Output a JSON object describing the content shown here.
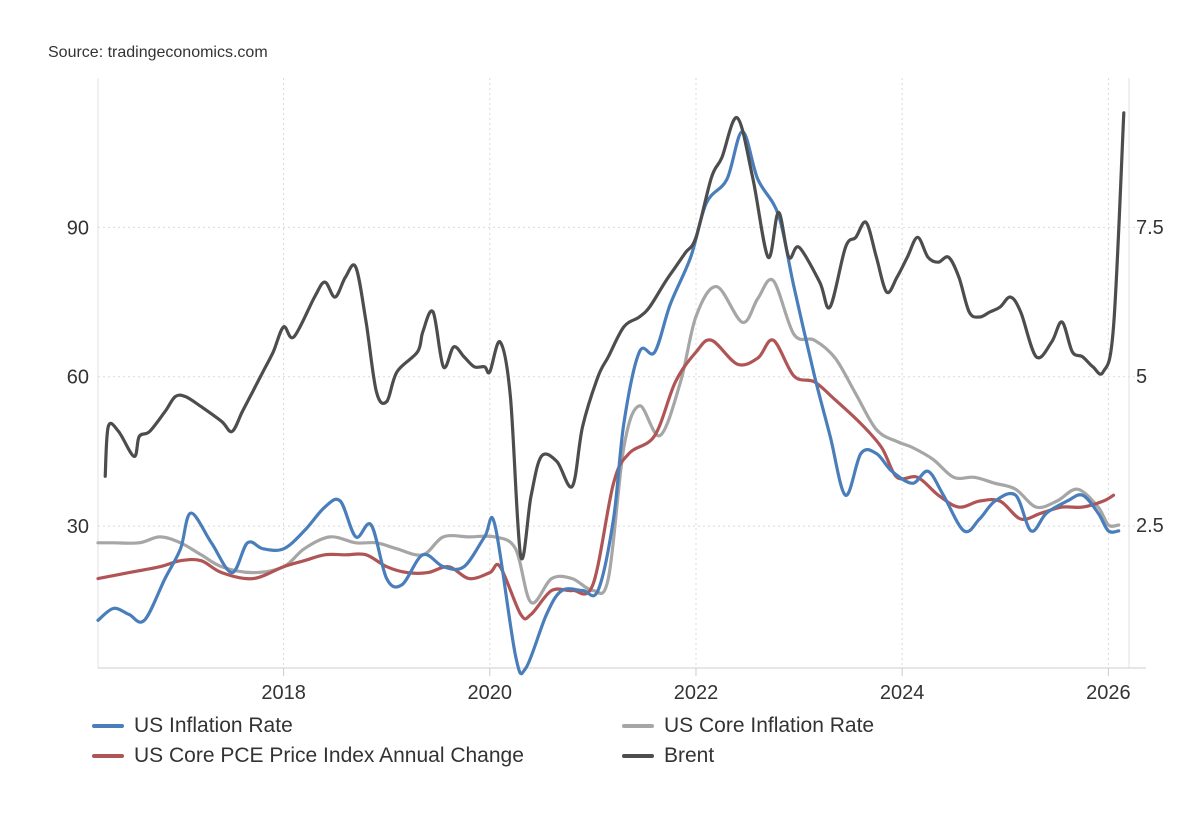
{
  "source": "Source: tradingeconomics.com",
  "chart_data": {
    "type": "line",
    "xlim": [
      2016.2,
      2026.2
    ],
    "x_ticks": [
      2018,
      2020,
      2022,
      2024,
      2026
    ],
    "x_tick_labels": [
      "2018",
      "2020",
      "2022",
      "2024",
      "2026"
    ],
    "y_left": {
      "ticks": [
        30,
        60,
        90
      ],
      "tick_labels": [
        "30",
        "60",
        "90"
      ],
      "range": [
        1.5,
        120
      ],
      "applies_to": "Brent"
    },
    "y_right": {
      "ticks": [
        2.5,
        5,
        7.5
      ],
      "tick_labels": [
        "2.5",
        "5",
        "7.5"
      ],
      "range": [
        0.1,
        10
      ],
      "applies_to": [
        "US Inflation Rate",
        "US Core Inflation Rate",
        "US Core PCE Price Index Annual Change"
      ]
    },
    "grid": true,
    "legend_position": "bottom",
    "series": [
      {
        "name": "US Inflation Rate",
        "axis": "right",
        "color": "#4a7ebb",
        "x": [
          2016.2,
          2016.35,
          2016.5,
          2016.65,
          2016.85,
          2017.0,
          2017.1,
          2017.3,
          2017.5,
          2017.65,
          2017.8,
          2018.0,
          2018.2,
          2018.4,
          2018.55,
          2018.7,
          2018.85,
          2019.0,
          2019.15,
          2019.35,
          2019.55,
          2019.75,
          2019.95,
          2020.05,
          2020.25,
          2020.35,
          2020.55,
          2020.7,
          2020.9,
          2021.05,
          2021.2,
          2021.3,
          2021.45,
          2021.6,
          2021.75,
          2021.95,
          2022.1,
          2022.3,
          2022.45,
          2022.6,
          2022.8,
          2022.95,
          2023.15,
          2023.3,
          2023.45,
          2023.6,
          2023.75,
          2023.9,
          2024.1,
          2024.25,
          2024.4,
          2024.6,
          2024.75,
          2024.9,
          2025.1,
          2025.25,
          2025.4,
          2025.6,
          2025.75,
          2025.9,
          2026.0,
          2026.1
        ],
        "y": [
          0.9,
          1.1,
          1.0,
          0.9,
          1.6,
          2.1,
          2.7,
          2.2,
          1.7,
          2.2,
          2.1,
          2.1,
          2.4,
          2.8,
          2.9,
          2.3,
          2.5,
          1.6,
          1.5,
          2.0,
          1.8,
          1.8,
          2.3,
          2.5,
          0.3,
          0.1,
          1.0,
          1.4,
          1.4,
          1.4,
          2.6,
          4.2,
          5.4,
          5.4,
          6.2,
          7.0,
          7.9,
          8.3,
          9.1,
          8.3,
          7.7,
          6.5,
          5.0,
          4.0,
          3.0,
          3.7,
          3.7,
          3.4,
          3.2,
          3.4,
          3.0,
          2.4,
          2.6,
          2.9,
          3.0,
          2.4,
          2.7,
          2.9,
          3.0,
          2.7,
          2.4,
          2.4
        ]
      },
      {
        "name": "US Core Inflation Rate",
        "axis": "right",
        "color": "#a6a6a6",
        "x": [
          2016.2,
          2016.35,
          2016.6,
          2016.8,
          2017.0,
          2017.2,
          2017.4,
          2017.7,
          2018.0,
          2018.2,
          2018.45,
          2018.7,
          2018.9,
          2019.1,
          2019.35,
          2019.55,
          2019.8,
          2020.05,
          2020.25,
          2020.4,
          2020.6,
          2020.8,
          2021.0,
          2021.15,
          2021.3,
          2021.45,
          2021.65,
          2021.85,
          2022.0,
          2022.2,
          2022.45,
          2022.6,
          2022.75,
          2022.95,
          2023.15,
          2023.35,
          2023.55,
          2023.75,
          2023.95,
          2024.1,
          2024.3,
          2024.5,
          2024.7,
          2024.9,
          2025.1,
          2025.3,
          2025.5,
          2025.7,
          2025.9,
          2026.0,
          2026.1
        ],
        "y": [
          2.2,
          2.2,
          2.2,
          2.3,
          2.2,
          2.0,
          1.8,
          1.7,
          1.8,
          2.1,
          2.3,
          2.2,
          2.2,
          2.1,
          2.0,
          2.3,
          2.3,
          2.3,
          2.1,
          1.2,
          1.6,
          1.6,
          1.4,
          1.6,
          3.8,
          4.5,
          4.0,
          4.9,
          6.0,
          6.5,
          5.9,
          6.3,
          6.6,
          5.7,
          5.6,
          5.3,
          4.7,
          4.1,
          3.9,
          3.8,
          3.6,
          3.3,
          3.3,
          3.2,
          3.1,
          2.8,
          2.9,
          3.1,
          2.8,
          2.5,
          2.5
        ]
      },
      {
        "name": "US Core PCE Price Index Annual Change",
        "axis": "right",
        "color": "#b05556",
        "x": [
          2016.2,
          2016.5,
          2016.8,
          2017.0,
          2017.2,
          2017.4,
          2017.7,
          2018.0,
          2018.2,
          2018.4,
          2018.6,
          2018.8,
          2019.0,
          2019.2,
          2019.4,
          2019.6,
          2019.8,
          2020.0,
          2020.1,
          2020.3,
          2020.4,
          2020.6,
          2020.8,
          2021.0,
          2021.2,
          2021.35,
          2021.6,
          2021.8,
          2022.0,
          2022.15,
          2022.4,
          2022.6,
          2022.75,
          2022.95,
          2023.15,
          2023.35,
          2023.6,
          2023.8,
          2023.95,
          2024.15,
          2024.35,
          2024.55,
          2024.75,
          2024.95,
          2025.15,
          2025.35,
          2025.55,
          2025.75,
          2025.95,
          2026.05
        ],
        "y": [
          1.6,
          1.7,
          1.8,
          1.9,
          1.9,
          1.7,
          1.6,
          1.8,
          1.9,
          2.0,
          2.0,
          2.0,
          1.8,
          1.7,
          1.7,
          1.8,
          1.6,
          1.7,
          1.8,
          1.0,
          1.0,
          1.4,
          1.4,
          1.5,
          3.2,
          3.7,
          4.0,
          4.9,
          5.4,
          5.6,
          5.2,
          5.3,
          5.6,
          5.0,
          4.9,
          4.6,
          4.2,
          3.8,
          3.3,
          3.3,
          3.0,
          2.8,
          2.9,
          2.9,
          2.6,
          2.7,
          2.8,
          2.8,
          2.9,
          3.0
        ]
      },
      {
        "name": "Brent",
        "axis": "left",
        "color": "#4d4d4d",
        "x": [
          2016.27,
          2016.3,
          2016.4,
          2016.55,
          2016.6,
          2016.7,
          2016.85,
          2016.95,
          2017.05,
          2017.2,
          2017.4,
          2017.5,
          2017.6,
          2017.7,
          2017.8,
          2017.9,
          2018.0,
          2018.1,
          2018.3,
          2018.4,
          2018.5,
          2018.6,
          2018.7,
          2018.8,
          2018.9,
          2019.0,
          2019.1,
          2019.3,
          2019.35,
          2019.45,
          2019.55,
          2019.65,
          2019.75,
          2019.85,
          2019.95,
          2020.0,
          2020.1,
          2020.2,
          2020.3,
          2020.4,
          2020.5,
          2020.65,
          2020.8,
          2020.9,
          2021.05,
          2021.15,
          2021.3,
          2021.45,
          2021.55,
          2021.7,
          2021.8,
          2021.9,
          2022.0,
          2022.15,
          2022.25,
          2022.4,
          2022.55,
          2022.7,
          2022.8,
          2022.9,
          2023.0,
          2023.2,
          2023.3,
          2023.45,
          2023.55,
          2023.65,
          2023.75,
          2023.85,
          2023.95,
          2024.05,
          2024.15,
          2024.25,
          2024.35,
          2024.45,
          2024.55,
          2024.65,
          2024.75,
          2024.85,
          2024.95,
          2025.05,
          2025.15,
          2025.3,
          2025.45,
          2025.55,
          2025.65,
          2025.75,
          2025.85,
          2025.95,
          2026.05,
          2026.15
        ],
        "y": [
          40,
          50,
          49,
          44,
          48,
          49,
          53,
          56,
          56,
          54,
          51,
          49,
          53,
          57,
          61,
          65,
          70,
          68,
          76,
          79,
          76,
          80,
          82,
          71,
          57,
          55,
          61,
          65,
          69,
          73,
          62,
          66,
          64,
          62,
          62,
          61,
          67,
          56,
          24,
          36,
          44,
          43,
          38,
          50,
          60,
          64,
          70,
          72,
          74,
          79,
          82,
          85,
          88,
          100,
          104,
          112,
          100,
          84,
          93,
          84,
          86,
          79,
          74,
          86,
          88,
          91,
          84,
          77,
          80,
          84,
          88,
          84,
          83,
          84,
          80,
          73,
          72,
          73,
          74,
          76,
          73,
          64,
          67,
          71,
          65,
          64,
          62,
          61,
          70,
          113
        ]
      }
    ]
  }
}
